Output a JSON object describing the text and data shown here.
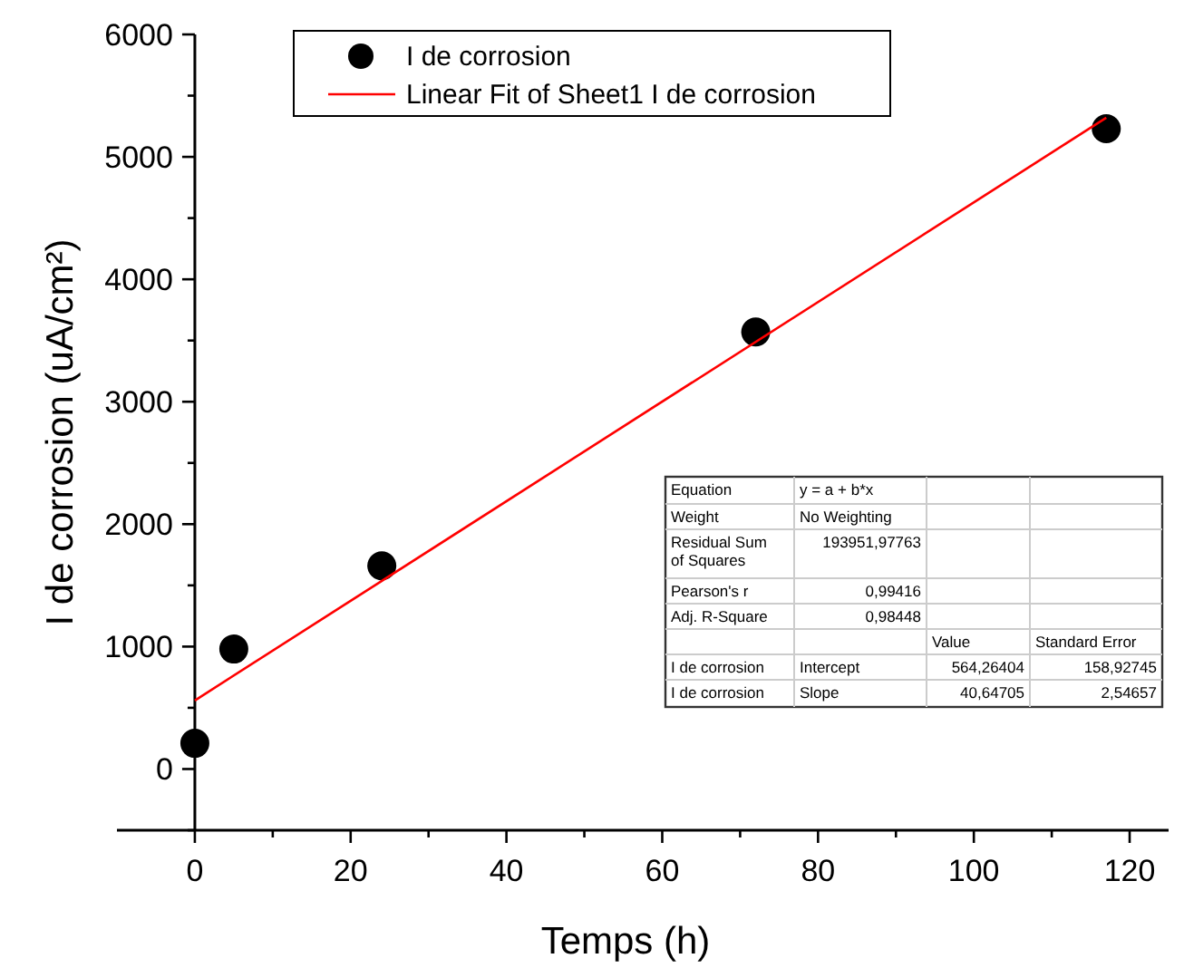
{
  "chart_data": {
    "type": "scatter",
    "xlabel": "Temps (h)",
    "ylabel": "I de corrosion (uA/cm²)",
    "xlim": [
      -10,
      125
    ],
    "xticks": [
      0,
      {
        "value": 10,
        "label": null
      },
      20,
      {
        "value": 30,
        "label": null
      },
      40,
      {
        "value": 50,
        "label": null
      },
      60,
      {
        "value": 70,
        "label": null
      },
      80,
      {
        "value": 90,
        "label": null
      },
      100,
      {
        "value": 110,
        "label": null
      },
      120
    ],
    "ylim": [
      -500,
      6000
    ],
    "yticks": [
      {
        "value": -500,
        "label": null
      },
      0,
      {
        "value": 500,
        "label": null
      },
      1000,
      {
        "value": 1500,
        "label": null
      },
      2000,
      {
        "value": 2500,
        "label": null
      },
      3000,
      {
        "value": 3500,
        "label": null
      },
      4000,
      {
        "value": 4500,
        "label": null
      },
      5000,
      {
        "value": 5500,
        "label": null
      },
      6000
    ],
    "series": [
      {
        "name": "I de corrosion",
        "marker": "circle",
        "color": "#000000",
        "x": [
          0,
          5,
          24,
          72,
          117
        ],
        "values": [
          210,
          980,
          1660,
          3570,
          5230
        ]
      },
      {
        "name": "Linear Fit of Sheet1 I de corrosion",
        "type": "line",
        "color": "#ff0000",
        "x": [
          0,
          117
        ],
        "values": [
          560,
          5320
        ]
      }
    ],
    "legend": "top left",
    "grid": false,
    "annotations": [
      "Equation",
      "y = a + b*x",
      "Weight",
      "No Weighting",
      "Residual Sum of Squares",
      "193951,97763",
      "Pearson's r",
      "0,99416",
      "Adj. R-Square",
      "0,98448",
      "Value",
      "Standard Error",
      "I de corrosion",
      "Intercept",
      "564,26404",
      "158,92745",
      "I de corrosion",
      "Slope",
      "40,64705",
      "2,54657"
    ]
  }
}
